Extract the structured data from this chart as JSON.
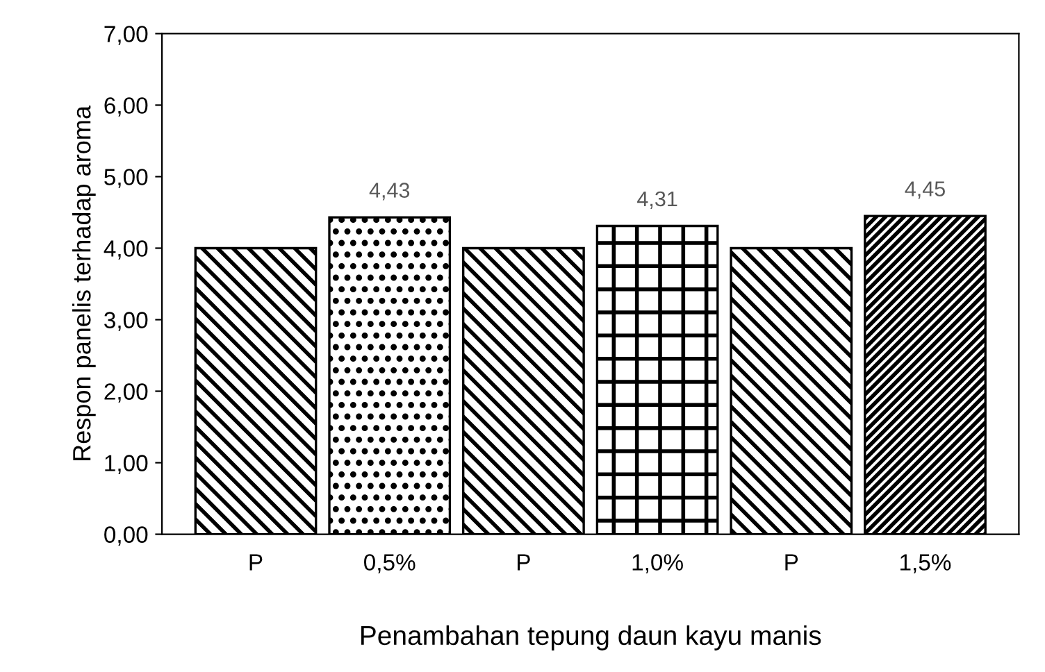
{
  "chart_data": {
    "type": "bar",
    "xlabel": "Penambahan tepung daun kayu manis",
    "ylabel": "Respon panelis terhadap aroma",
    "categories": [
      "P",
      "0,5%",
      "P",
      "1,0%",
      "P",
      "1,5%"
    ],
    "values": [
      4.0,
      4.43,
      4.0,
      4.31,
      4.0,
      4.45
    ],
    "value_labels": [
      null,
      "4,43",
      null,
      "4,31",
      null,
      "4,45"
    ],
    "colors": [
      "#000000",
      "#000000",
      "#000000",
      "#000000",
      "#000000",
      "#000000"
    ],
    "ylim": [
      0,
      7
    ],
    "yticks": [
      {
        "value": 0,
        "label": "0,00"
      },
      {
        "value": 1,
        "label": "1,00"
      },
      {
        "value": 2,
        "label": "2,00"
      },
      {
        "value": 3,
        "label": "3,00"
      },
      {
        "value": 4,
        "label": "4,00"
      },
      {
        "value": 5,
        "label": "5,00"
      },
      {
        "value": 6,
        "label": "6,00"
      },
      {
        "value": 7,
        "label": "7,00"
      }
    ],
    "grid": false,
    "legend": false
  }
}
